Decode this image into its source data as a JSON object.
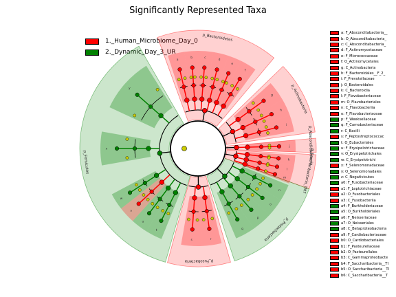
{
  "title": "Significantly Represented Taxa",
  "chart_data": {
    "type": "cladogram",
    "groups": [
      {
        "name": "1._Human_Microbiome_Day_0",
        "color": "#ff0000"
      },
      {
        "name": "2._Dynamic_Day_3_UR",
        "color": "#008000"
      }
    ],
    "phyla": [
      {
        "label": "p_Bacteroidetes",
        "group": 0,
        "start": 250,
        "end": 310
      },
      {
        "label": "p_Actinobacteria",
        "group": 0,
        "start": 316,
        "end": 352
      },
      {
        "label": "p_Abscondidbacteria",
        "group": 0,
        "start": 355,
        "end": 362
      },
      {
        "label": "p_Saccharibacteria_TM7",
        "group": 0,
        "start": 363,
        "end": 380
      },
      {
        "label": "p_Proteobacteria",
        "group": 1,
        "start": 20,
        "end": 72
      },
      {
        "label": "p_Fusobacteria",
        "group": 0,
        "start": 74,
        "end": 105
      },
      {
        "label": "p_Firmicutes",
        "group": 1,
        "start": 106,
        "end": 240
      }
    ],
    "wedges": [
      {
        "label": "a",
        "group": 0,
        "start": 252,
        "end": 262
      },
      {
        "label": "b",
        "group": 0,
        "start": 262,
        "end": 270
      },
      {
        "label": "c",
        "group": 0,
        "start": 270,
        "end": 279
      },
      {
        "label": "d",
        "group": 0,
        "start": 279,
        "end": 288
      },
      {
        "label": "e",
        "group": 0,
        "start": 288,
        "end": 296
      },
      {
        "label": "f",
        "group": 0,
        "start": 296,
        "end": 306
      },
      {
        "label": "g",
        "group": 0,
        "start": 318,
        "end": 330
      },
      {
        "label": "h",
        "group": 0,
        "start": 330,
        "end": 340
      },
      {
        "label": "i",
        "group": 0,
        "start": 340,
        "end": 350
      },
      {
        "label": "j",
        "group": 0,
        "start": 355,
        "end": 362
      },
      {
        "label": "k",
        "group": 0,
        "start": 4,
        "end": 10
      },
      {
        "label": "l",
        "group": 0,
        "start": 10,
        "end": 16
      },
      {
        "label": "m",
        "group": 0,
        "start": 16,
        "end": 21
      },
      {
        "label": "n",
        "group": 1,
        "start": 22,
        "end": 32
      },
      {
        "label": "o",
        "group": 1,
        "start": 32,
        "end": 43
      },
      {
        "label": "p",
        "group": 1,
        "start": 43,
        "end": 55
      },
      {
        "label": "q",
        "group": 1,
        "start": 55,
        "end": 67
      },
      {
        "label": "r",
        "group": 0,
        "start": 76,
        "end": 88
      },
      {
        "label": "s",
        "group": 0,
        "start": 88,
        "end": 100
      },
      {
        "label": "t",
        "group": 1,
        "start": 112,
        "end": 122
      },
      {
        "label": "u",
        "group": 1,
        "start": 122,
        "end": 132
      },
      {
        "label": "v",
        "group": 0,
        "start": 132,
        "end": 142
      },
      {
        "label": "w",
        "group": 1,
        "start": 142,
        "end": 152
      },
      {
        "label": "x",
        "group": 1,
        "start": 170,
        "end": 190
      },
      {
        "label": "y",
        "group": 1,
        "start": 205,
        "end": 238
      }
    ],
    "legend_entries": [
      {
        "label": "a: F_Absconditabacteria__",
        "group": 0
      },
      {
        "label": "b: O_Absconditabacteria_",
        "group": 0
      },
      {
        "label": "c: C_Absconditabacteria_",
        "group": 0
      },
      {
        "label": "d: F_Actinomycetaceae",
        "group": 0
      },
      {
        "label": "e: F_Micrococcaceae",
        "group": 0
      },
      {
        "label": "f: O_Actinomycetales",
        "group": 0
      },
      {
        "label": "g: C_Actinobacteria",
        "group": 0
      },
      {
        "label": "h: F_Bacteroidales__F_2_",
        "group": 0
      },
      {
        "label": "i: F_Prevotellaceae",
        "group": 0
      },
      {
        "label": "j: O_Bacteroidales",
        "group": 0
      },
      {
        "label": "k: C_Bacteroidia",
        "group": 0
      },
      {
        "label": "l: F_Flavobacteriaceae",
        "group": 0
      },
      {
        "label": "m: O_Flavobacteriales",
        "group": 0
      },
      {
        "label": "n: C_Flavobacteriia",
        "group": 0
      },
      {
        "label": "o: F_Flavobacteriaceae",
        "group": 0
      },
      {
        "label": "p: F_Weeksellaceae",
        "group": 1
      },
      {
        "label": "q: F_Carnobacteriaceae",
        "group": 1
      },
      {
        "label": "r: C_Bacilli",
        "group": 1
      },
      {
        "label": "s: F_Peptostreptococcac",
        "group": 0
      },
      {
        "label": "t: O_Eubacteriales",
        "group": 1
      },
      {
        "label": "u: F_Erysipelotrichaceae",
        "group": 1
      },
      {
        "label": "v: O_Erysipelotrichales",
        "group": 1
      },
      {
        "label": "w: C_Erysipelotrichi",
        "group": 1
      },
      {
        "label": "x: F_Selenomonadaceae",
        "group": 0
      },
      {
        "label": "y: O_Selenomonadales",
        "group": 1
      },
      {
        "label": "z: C_Negativicutes",
        "group": 1
      },
      {
        "label": "a0: F_Fusobacteriaceae",
        "group": 1
      },
      {
        "label": "a1: F_Leptotrichiaceae",
        "group": 0
      },
      {
        "label": "a2: O_Fusobacteriales",
        "group": 0
      },
      {
        "label": "a3: C_Fusobacteriia",
        "group": 0
      },
      {
        "label": "a4: F_Burkholderiaceae",
        "group": 1
      },
      {
        "label": "a5: O_Burkholderiales",
        "group": 1
      },
      {
        "label": "a6: F_Neisseriaceae",
        "group": 1
      },
      {
        "label": "a7: O_Neisseriales",
        "group": 1
      },
      {
        "label": "a8: C_Betaproteobacteria",
        "group": 1
      },
      {
        "label": "a9: F_Cardiobacteriaceae",
        "group": 0
      },
      {
        "label": "b0: O_Cardiobacteriales",
        "group": 0
      },
      {
        "label": "b1: F_Pasteurellaceae",
        "group": 0
      },
      {
        "label": "b2: O_Pasteurellales",
        "group": 0
      },
      {
        "label": "b3: C_Gammaproteobacte",
        "group": 0
      },
      {
        "label": "b4: F_Saccharibacteria__TI",
        "group": 0
      },
      {
        "label": "b5: O_Saccharibacteria__TI",
        "group": 0
      },
      {
        "label": "b6: C_Saccharibacteria__T",
        "group": 0
      }
    ],
    "colors": {
      "group0_fill": "#ff9999",
      "group1_fill": "#66bb66",
      "node_neutral": "#cccc00"
    }
  }
}
